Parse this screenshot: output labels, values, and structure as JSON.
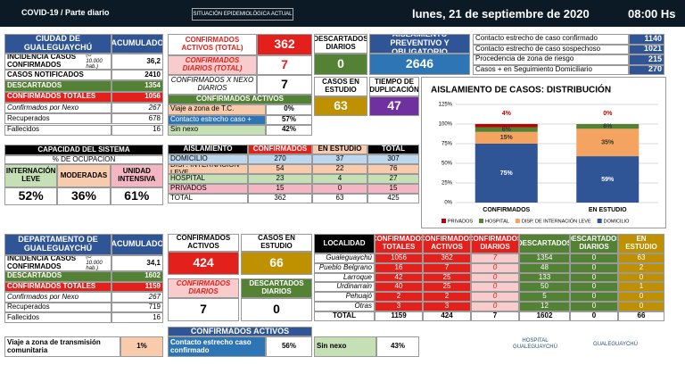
{
  "header": {
    "title": "COVID-19 / Parte diario",
    "subtitle": "SITUACIÓN EPIDEMIOLÓGICA ACTUAL",
    "date": "lunes, 21 de septiembre de 2020",
    "time": "08:00 Hs"
  },
  "city": {
    "title": "CIUDAD DE GUALEGUAYCHÚ",
    "column": "ACUMULADO",
    "rows": [
      {
        "label": "INCIDENCIA CASOS CONFIRMADOS",
        "note": "(c/ 10.000 hab.)",
        "value": "36,2"
      },
      {
        "label": "CASOS NOTIFICADOS",
        "value": 2410
      },
      {
        "label": "DESCARTADOS",
        "value": 1354
      },
      {
        "label": "CONFIRMADOS TOTALES",
        "value": 1056
      },
      {
        "label": "Confirmados por Nexo",
        "value": 267
      },
      {
        "label": "Recuperados",
        "value": 678
      },
      {
        "label": "Fallecidos",
        "value": 16
      }
    ]
  },
  "city_summary": {
    "active": {
      "label": "CONFIRMADOS ACTIVOS (TOTAL)",
      "value": 362
    },
    "daily": {
      "label": "CONFIRMADOS DIARIOS (TOTAL)",
      "value": 7
    },
    "nexo_daily": {
      "label": "CONFIRMADOS X NEXO DIARIOS",
      "value": 7
    },
    "breakdown": {
      "title": "CONFIRMADOS ACTIVOS",
      "rows": [
        {
          "label": "Viaje a zona de T.C.",
          "value": "0%"
        },
        {
          "label": "Contacto estrecho caso +",
          "value": "57%"
        },
        {
          "label": "Sin nexo",
          "value": "42%"
        }
      ]
    }
  },
  "status": {
    "discarded_daily": {
      "label": "DESCARTADOS DIARIOS",
      "value": 0
    },
    "isolation": {
      "label": "AISLAMIENTO PREVENTIVO Y OBLIGATORIO",
      "value": 2646
    },
    "in_study": {
      "label": "CASOS EN ESTUDIO",
      "value": 63
    },
    "doubling": {
      "label": "TIEMPO DE DUPLICACIÓN",
      "value": 47
    }
  },
  "isolation_list": [
    {
      "label": "Contacto estrecho de caso confirmado",
      "value": 1140
    },
    {
      "label": "Contacto estrecho de caso sospechoso",
      "value": 1021
    },
    {
      "label": "Procedencia de zona de riesgo",
      "value": 215
    },
    {
      "label": "Casos + en Seguimiento Domiciliario",
      "value": 270
    }
  ],
  "chart": {
    "type": "bar",
    "stacked": true,
    "title": "AISLAMIENTO DE CASOS: DISTRIBUCIÓN",
    "categories": [
      "CONFIRMADOS",
      "EN ESTUDIO"
    ],
    "series": [
      {
        "name": "PRIVADOS",
        "color": "#c00000",
        "values": [
          4,
          0
        ],
        "value_labels": [
          "4%",
          "0%"
        ]
      },
      {
        "name": "HOSPITAL",
        "color": "#548235",
        "values": [
          6,
          6
        ],
        "value_labels": [
          "6%",
          "6%"
        ]
      },
      {
        "name": "DISP. DE INTERNACIÓN LEVE",
        "color": "#f4a460",
        "values": [
          15,
          35
        ],
        "value_labels": [
          "15%",
          "35%"
        ]
      },
      {
        "name": "DOMICILIO",
        "color": "#2f5597",
        "values": [
          75,
          59
        ],
        "value_labels": [
          "75%",
          "59%"
        ]
      }
    ],
    "ylim": [
      0,
      125
    ],
    "yticks": [
      {
        "value": 0,
        "label": "0%"
      },
      {
        "value": 25,
        "label": "25%"
      },
      {
        "value": 50,
        "label": "50%"
      },
      {
        "value": 75,
        "label": "75%"
      },
      {
        "value": 100,
        "label": "100%"
      },
      {
        "value": 125,
        "label": "125%"
      }
    ],
    "grid": true,
    "legend": "bottom"
  },
  "capacity": {
    "title": "CAPACIDAD DEL SISTEMA",
    "subtitle": "% DE OCUPACIÓN",
    "columns": [
      "INTERNACIÓN LEVE",
      "MODERADAS",
      "UNIDAD INTENSIVA"
    ],
    "values": [
      "52%",
      "36%",
      "61%"
    ]
  },
  "isolation_table": {
    "columns": [
      "AISLAMIENTO",
      "CONFIRMADOS",
      "EN ESTUDIO",
      "TOTAL"
    ],
    "rows": [
      [
        "DOMICILIO",
        270,
        37,
        307
      ],
      [
        "DISP. INTERNACIÓN LEVE",
        54,
        22,
        76
      ],
      [
        "HOSPITAL",
        23,
        4,
        27
      ],
      [
        "PRIVADOS",
        15,
        0,
        15
      ],
      [
        "TOTAL",
        362,
        63,
        425
      ]
    ]
  },
  "department": {
    "title": "DEPARTAMENTO DE GUALEGUAYCHÚ",
    "column": "ACUMULADO",
    "rows": [
      {
        "label": "INCIDENCIA CASOS CONFIRMADOS",
        "note": "(c/ 10.000 hab.)",
        "value": "34,1"
      },
      {
        "label": "DESCARTADOS",
        "value": 1602
      },
      {
        "label": "CONFIRMADOS TOTALES",
        "value": 1159
      },
      {
        "label": "Confirmados por Nexo",
        "value": 267
      },
      {
        "label": "Recuperados",
        "value": 719
      },
      {
        "label": "Fallecidos",
        "value": 16
      }
    ]
  },
  "department_summary": {
    "active": {
      "label": "CONFIRMADOS ACTIVOS",
      "value": 424
    },
    "in_study": {
      "label": "CASOS EN ESTUDIO",
      "value": 66
    },
    "daily": {
      "label": "CONFIRMADOS DIARIOS",
      "value": 7
    },
    "discarded_daily": {
      "label": "DESCARTADOS DIARIOS",
      "value": 0
    }
  },
  "localities": {
    "columns": [
      "LOCALIDAD",
      "CONFIRMADOS TOTALES",
      "CONFIRMADOS ACTIVOS",
      "CONFIRMADOS DIARIOS",
      "DESCARTADOS",
      "DESCARTADOS DIARIOS",
      "EN ESTUDIO"
    ],
    "rows": [
      [
        "Gualeguaychú",
        1056,
        362,
        7,
        1354,
        0,
        63
      ],
      [
        "Pueblo Belgrano",
        16,
        7,
        0,
        48,
        0,
        2
      ],
      [
        "Larroque",
        42,
        25,
        0,
        133,
        0,
        0
      ],
      [
        "Urdinarrain",
        40,
        25,
        0,
        50,
        0,
        1
      ],
      [
        "Pehuajó",
        2,
        2,
        0,
        5,
        0,
        0
      ],
      [
        "Otras",
        3,
        3,
        0,
        12,
        0,
        0
      ],
      [
        "TOTAL",
        1159,
        424,
        7,
        1602,
        0,
        66
      ]
    ]
  },
  "department_breakdown": {
    "title": "CONFIRMADOS ACTIVOS",
    "rows": [
      {
        "label": "Viaje a zona de transmisión comunitaria",
        "value": "1%"
      },
      {
        "label": "Contacto estrecho caso confirmado",
        "value": "56%"
      },
      {
        "label": "Sin nexo",
        "value": "43%"
      }
    ]
  },
  "footer": {
    "logos": [
      "HOSPITAL GUALEGUAYCHÚ",
      "GUALEGUAYCHÚ"
    ]
  }
}
